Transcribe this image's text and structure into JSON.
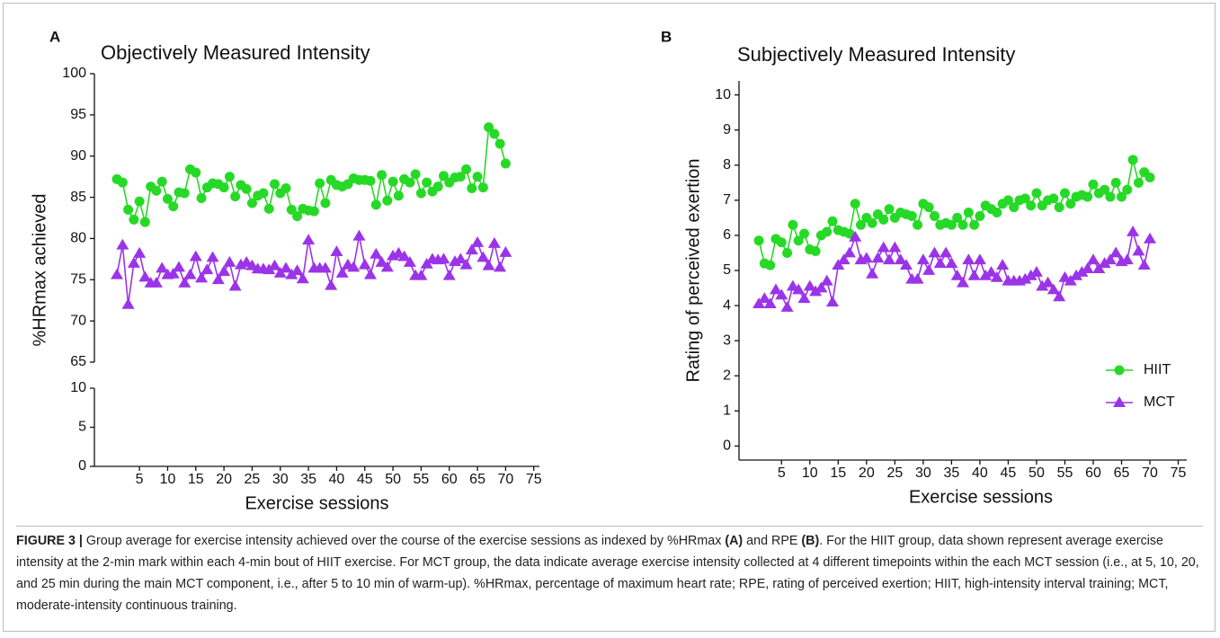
{
  "chart_data": [
    {
      "type": "line",
      "panel": "A",
      "title": "Objectively Measured Intensity",
      "x_label": "Exercise sessions",
      "y_label": "%HRmax achieved",
      "x": [
        1,
        2,
        3,
        4,
        5,
        6,
        7,
        8,
        9,
        10,
        11,
        12,
        13,
        14,
        15,
        16,
        17,
        18,
        19,
        20,
        21,
        22,
        23,
        24,
        25,
        26,
        27,
        28,
        29,
        30,
        31,
        32,
        33,
        34,
        35,
        36,
        37,
        38,
        39,
        40,
        41,
        42,
        43,
        44,
        45,
        46,
        47,
        48,
        49,
        50,
        51,
        52,
        53,
        54,
        55,
        56,
        57,
        58,
        59,
        60,
        61,
        62,
        63,
        64,
        65,
        66,
        67,
        68,
        69,
        70
      ],
      "series": [
        {
          "name": "HIIT",
          "color": "#27d927",
          "marker": "circle",
          "values": [
            87.2,
            86.8,
            83.5,
            82.3,
            84.5,
            82,
            86.3,
            85.8,
            86.9,
            84.8,
            83.9,
            85.6,
            85.5,
            88.4,
            88,
            84.9,
            86.2,
            86.7,
            86.6,
            86.2,
            87.5,
            85.1,
            86.5,
            86,
            84.3,
            85.2,
            85.5,
            83.6,
            86.6,
            85.5,
            86.1,
            83.5,
            82.7,
            83.6,
            83.4,
            83.3,
            86.7,
            84.3,
            87.1,
            86.5,
            86.3,
            86.6,
            87.3,
            87.1,
            87.1,
            87,
            84.1,
            87.7,
            84.6,
            86.9,
            85.2,
            87.2,
            86.8,
            87.8,
            85.5,
            86.8,
            85.7,
            86.3,
            87.6,
            86.8,
            87.4,
            87.5,
            88.4,
            86.1,
            87.5,
            86.2,
            93.5,
            92.7,
            91.5,
            89.1
          ]
        },
        {
          "name": "MCT",
          "color": "#9b34e8",
          "marker": "triangle",
          "values": [
            75.6,
            79.2,
            72,
            77,
            78.2,
            75.3,
            74.6,
            74.6,
            76.4,
            75.6,
            75.7,
            76.5,
            74.6,
            75.6,
            77.8,
            75.2,
            76.2,
            77.7,
            75,
            76,
            77.1,
            74.2,
            76.8,
            77.1,
            76.7,
            76.3,
            76.3,
            76.2,
            76.7,
            75.8,
            76.4,
            75.6,
            76.1,
            75.1,
            79.8,
            76.4,
            76.4,
            76.4,
            74.3,
            78.4,
            75.8,
            76.8,
            76.5,
            80.3,
            76.8,
            75.6,
            78.1,
            77.1,
            76.5,
            77.9,
            78.2,
            77.8,
            77.1,
            75.5,
            75.5,
            76.9,
            77.5,
            77.4,
            77.5,
            75.5,
            77.2,
            77.5,
            76.8,
            78.6,
            79.5,
            77.7,
            76.7,
            79.4,
            76.5,
            78.3
          ]
        }
      ],
      "xlim": [
        -3,
        76
      ],
      "xticks": [
        5,
        10,
        15,
        20,
        25,
        30,
        35,
        40,
        45,
        50,
        55,
        60,
        65,
        70,
        75
      ],
      "ylim": [
        0,
        100
      ],
      "ybreak": [
        10,
        65
      ],
      "yticks": [
        0,
        5,
        10,
        65,
        70,
        75,
        80,
        85,
        90,
        95,
        100
      ]
    },
    {
      "type": "line",
      "panel": "B",
      "title": "Subjectively Measured Intensity",
      "x_label": "Exercise sessions",
      "y_label": "Rating of perceived exertion",
      "x": [
        1,
        2,
        3,
        4,
        5,
        6,
        7,
        8,
        9,
        10,
        11,
        12,
        13,
        14,
        15,
        16,
        17,
        18,
        19,
        20,
        21,
        22,
        23,
        24,
        25,
        26,
        27,
        28,
        29,
        30,
        31,
        32,
        33,
        34,
        35,
        36,
        37,
        38,
        39,
        40,
        41,
        42,
        43,
        44,
        45,
        46,
        47,
        48,
        49,
        50,
        51,
        52,
        53,
        54,
        55,
        56,
        57,
        58,
        59,
        60,
        61,
        62,
        63,
        64,
        65,
        66,
        67,
        68,
        69,
        70
      ],
      "series": [
        {
          "name": "HIIT",
          "color": "#27d927",
          "marker": "circle",
          "values": [
            5.85,
            5.2,
            5.15,
            5.9,
            5.8,
            5.5,
            6.3,
            5.85,
            6.05,
            5.6,
            5.55,
            6,
            6.1,
            6.4,
            6.15,
            6.1,
            6.05,
            6.9,
            6.3,
            6.5,
            6.35,
            6.6,
            6.45,
            6.75,
            6.5,
            6.65,
            6.6,
            6.55,
            6.3,
            6.9,
            6.8,
            6.55,
            6.3,
            6.35,
            6.3,
            6.5,
            6.3,
            6.65,
            6.3,
            6.55,
            6.85,
            6.75,
            6.65,
            6.9,
            7,
            6.8,
            7,
            7.05,
            6.85,
            7.2,
            6.85,
            7,
            7.05,
            6.8,
            7.2,
            6.9,
            7.1,
            7.15,
            7.1,
            7.45,
            7.2,
            7.3,
            7.1,
            7.5,
            7.1,
            7.3,
            8.15,
            7.5,
            7.8,
            7.65
          ]
        },
        {
          "name": "MCT",
          "color": "#9b34e8",
          "marker": "triangle",
          "values": [
            4.05,
            4.2,
            4.05,
            4.45,
            4.3,
            3.95,
            4.55,
            4.45,
            4.2,
            4.55,
            4.4,
            4.5,
            4.7,
            4.1,
            5.15,
            5.3,
            5.5,
            5.95,
            5.3,
            5.35,
            4.9,
            5.35,
            5.65,
            5.3,
            5.65,
            5.3,
            5.15,
            4.75,
            4.75,
            5.3,
            5,
            5.5,
            5.2,
            5.5,
            5.2,
            4.85,
            4.65,
            5.3,
            4.85,
            5.3,
            4.85,
            4.95,
            4.8,
            5.15,
            4.7,
            4.7,
            4.7,
            4.75,
            4.85,
            4.95,
            4.55,
            4.65,
            4.45,
            4.25,
            4.8,
            4.7,
            4.85,
            4.95,
            5.05,
            5.3,
            5.05,
            5.2,
            5.3,
            5.5,
            5.25,
            5.3,
            6.1,
            5.55,
            5.15,
            5.9
          ]
        }
      ],
      "xlim": [
        -2.5,
        76.5
      ],
      "xticks": [
        5,
        10,
        15,
        20,
        25,
        30,
        35,
        40,
        45,
        50,
        55,
        60,
        65,
        70,
        75
      ],
      "ylim": [
        -0.4,
        10.4
      ],
      "yticks": [
        0,
        1,
        2,
        3,
        4,
        5,
        6,
        7,
        8,
        9,
        10
      ],
      "legend": "bottom-right"
    }
  ],
  "caption": {
    "label": "FIGURE 3 |",
    "parts": [
      "Group average for exercise intensity achieved over the course of the exercise sessions as indexed by %HRmax ",
      "(A)",
      " and RPE ",
      "(B)",
      ". For the HIIT group, data shown represent average exercise intensity at the 2-min mark within each 4-min bout of HIIT exercise. For MCT group, the data indicate average exercise intensity collected at 4 different timepoints within the each MCT session (i.e., at 5, 10, 20, and 25 min during the main MCT component, i.e., after 5 to 10 min of warm-up). %HRmax, percentage of maximum heart rate; RPE, rating of perceived exertion; HIIT, high-intensity interval training; MCT, moderate-intensity continuous training."
    ]
  }
}
